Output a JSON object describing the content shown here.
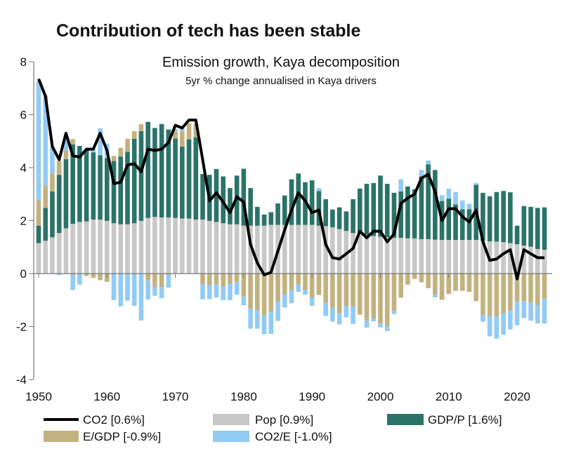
{
  "chart_data": {
    "type": "bar",
    "stacked": true,
    "title": "Contribution of tech has been stable",
    "subtitle": "Emission growth, Kaya decomposition",
    "subtitle2": "5yr % change annualised in Kaya drivers",
    "xlabel": "",
    "ylabel": "",
    "ylim": [
      -4,
      8
    ],
    "xlim": [
      1950,
      2024
    ],
    "yticks": [
      "-4",
      "-2",
      "0",
      "2",
      "4",
      "6",
      "8"
    ],
    "xticks": [
      "1950",
      "1960",
      "1970",
      "1980",
      "1990",
      "2000",
      "2010",
      "2020"
    ],
    "grid": false,
    "legend_position": "bottom",
    "x_start": 1950,
    "series": [
      {
        "name": "Pop [0.9%]",
        "key": "pop",
        "color": "#c8c8c8",
        "values": [
          1.15,
          1.24,
          1.37,
          1.53,
          1.71,
          1.88,
          1.95,
          1.97,
          2.04,
          2.04,
          1.99,
          1.9,
          1.86,
          1.86,
          1.9,
          1.99,
          2.1,
          2.14,
          2.12,
          2.12,
          2.1,
          2.08,
          2.08,
          2.04,
          2.04,
          1.99,
          1.95,
          1.9,
          1.86,
          1.86,
          1.81,
          1.81,
          1.81,
          1.81,
          1.84,
          1.84,
          1.84,
          1.84,
          1.84,
          1.84,
          1.84,
          1.81,
          1.79,
          1.75,
          1.68,
          1.61,
          1.53,
          1.5,
          1.46,
          1.42,
          1.39,
          1.37,
          1.35,
          1.35,
          1.33,
          1.33,
          1.3,
          1.3,
          1.28,
          1.27,
          1.27,
          1.27,
          1.27,
          1.27,
          1.27,
          1.24,
          1.22,
          1.21,
          1.19,
          1.15,
          1.11,
          1.06,
          1.02,
          0.93,
          0.9
        ]
      },
      {
        "name": "GDP/P [1.6%]",
        "key": "gdpp",
        "color": "#2b7369",
        "values": [
          0.66,
          1.24,
          1.73,
          2.2,
          2.61,
          3.0,
          2.87,
          2.72,
          2.54,
          2.43,
          2.37,
          2.35,
          2.56,
          2.74,
          3.19,
          3.39,
          3.63,
          3.36,
          3.53,
          3.32,
          3.0,
          2.72,
          2.99,
          3.1,
          1.72,
          1.74,
          2.0,
          1.77,
          1.37,
          1.84,
          2.15,
          1.42,
          0.71,
          0.42,
          0.48,
          0.81,
          1.11,
          1.72,
          1.94,
          1.61,
          1.68,
          1.31,
          1.02,
          0.67,
          0.82,
          0.74,
          1.28,
          1.71,
          1.93,
          2.0,
          2.31,
          2.02,
          1.7,
          1.75,
          1.96,
          1.86,
          2.37,
          2.82,
          2.63,
          1.47,
          1.56,
          1.34,
          1.16,
          1.16,
          2.08,
          1.81,
          1.7,
          1.87,
          1.93,
          1.92,
          0.7,
          1.49,
          1.5,
          1.55,
          1.6
        ]
      },
      {
        "name": "E/GDP [-0.9%]",
        "key": "egdp",
        "color": "#c3b17f",
        "values": [
          0.96,
          0.84,
          0.68,
          0.52,
          0.34,
          0.2,
          0,
          -0.09,
          -0.16,
          -0.25,
          -0.31,
          0.19,
          0.33,
          0.49,
          0.29,
          0.26,
          -0.25,
          -0.49,
          -0.51,
          -0.04,
          0.27,
          0.57,
          0.61,
          0.52,
          -0.4,
          -0.44,
          -0.4,
          -0.49,
          -0.4,
          -0.31,
          -0.87,
          -1.33,
          -1.4,
          -1.58,
          -1.43,
          -1.06,
          -0.78,
          -0.62,
          -0.42,
          -0.62,
          -0.9,
          -0.81,
          -1.1,
          -1.3,
          -1.5,
          -1.22,
          -1.24,
          -1.55,
          -1.77,
          -1.7,
          -1.9,
          -1.99,
          -1.42,
          -0.91,
          -0.42,
          -0.2,
          -0.33,
          -0.55,
          -0.8,
          -0.99,
          -0.77,
          -0.65,
          -0.65,
          -0.69,
          -1.04,
          -1.55,
          -1.62,
          -1.62,
          -1.5,
          -1.4,
          -1.06,
          -1.04,
          -1.1,
          -1.19,
          -0.95
        ]
      },
      {
        "name": "CO2/E [-1.0%]",
        "key": "co2e",
        "color": "#92cbf5",
        "values": [
          4.5,
          3.4,
          1.0,
          -0.05,
          0.47,
          -0.62,
          -0.42,
          0,
          0.11,
          1.02,
          0.55,
          -1.0,
          -1.24,
          -1.02,
          -1.22,
          -1.77,
          -0.73,
          -0.35,
          -0.42,
          -0.49,
          0.1,
          0.12,
          0,
          0,
          -0.57,
          -0.53,
          -0.5,
          -0.51,
          -0.6,
          -0.49,
          -0.33,
          -0.75,
          -0.68,
          -0.71,
          -0.85,
          -0.73,
          -0.5,
          -0.5,
          -0.27,
          -0.18,
          -0.32,
          0.11,
          -0.5,
          -0.51,
          -0.42,
          -0.43,
          -0.66,
          0,
          -0.27,
          -0.1,
          -0.13,
          -0.18,
          -0.11,
          0.46,
          0,
          0,
          0.24,
          0.15,
          -0.1,
          0.22,
          0.38,
          0.47,
          0.33,
          0.21,
          0.07,
          -0.27,
          -0.75,
          -0.84,
          -0.81,
          -0.71,
          -0.89,
          -0.64,
          -0.68,
          -0.69,
          -0.94
        ]
      }
    ],
    "line": {
      "name": "CO2 [0.6%]",
      "color": "#000000",
      "values": [
        7.35,
        6.7,
        4.8,
        4.3,
        5.3,
        4.45,
        4.4,
        4.7,
        4.7,
        5.3,
        4.65,
        3.4,
        3.45,
        4.1,
        4.15,
        3.85,
        4.7,
        4.65,
        4.7,
        4.95,
        5.6,
        5.5,
        5.8,
        5.8,
        4.3,
        2.75,
        3.05,
        2.7,
        2.3,
        2.9,
        2.7,
        1.1,
        0.4,
        -0.05,
        0.05,
        0.85,
        1.65,
        2.4,
        3.05,
        2.75,
        2.3,
        2.4,
        1.1,
        0.6,
        0.55,
        0.75,
        0.95,
        1.6,
        1.35,
        1.6,
        1.6,
        1.2,
        1.5,
        2.65,
        2.85,
        3.0,
        3.6,
        3.75,
        3.1,
        2.0,
        2.45,
        2.45,
        2.15,
        1.95,
        2.4,
        1.2,
        0.5,
        0.55,
        0.75,
        0.9,
        -0.2,
        0.9,
        0.75,
        0.6,
        0.6
      ]
    }
  }
}
